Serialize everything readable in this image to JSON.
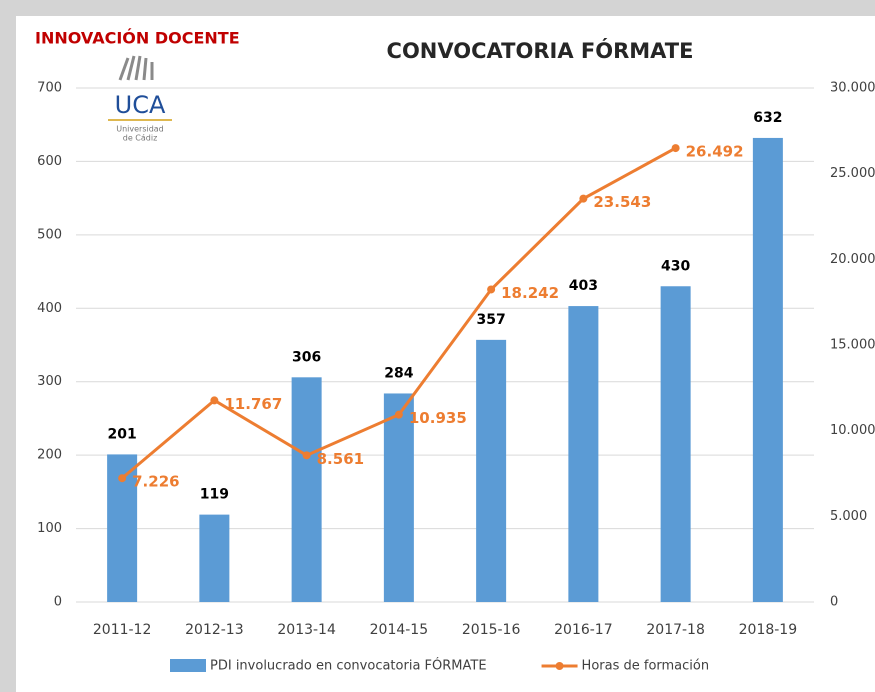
{
  "chart_data": {
    "type": "bar_line",
    "title": "CONVOCATORIA FÓRMATE",
    "brand": "INNOVACIÓN DOCENTE",
    "logo": {
      "text": "UCA",
      "lines": [
        "Universidad",
        "de Cádiz"
      ]
    },
    "categories": [
      "2011-12",
      "2012-13",
      "2013-14",
      "2014-15",
      "2015-16",
      "2016-17",
      "2017-18",
      "2018-19"
    ],
    "series": [
      {
        "name": "PDI involucrado en convocatoria FÓRMATE",
        "color": "#5b9bd5",
        "type": "bar",
        "values": [
          201,
          119,
          306,
          284,
          357,
          403,
          430,
          632
        ]
      },
      {
        "name": "Horas de formación",
        "color": "#ed7d31",
        "type": "line",
        "axis": "y2",
        "values": [
          7226,
          11767,
          8561,
          10935,
          18242,
          23543,
          26492,
          null
        ],
        "value_labels": [
          "7.226",
          "11.767",
          "8.561",
          "10.935",
          "18.242",
          "23.543",
          "26.492",
          null
        ]
      }
    ],
    "ylim": [
      0,
      700
    ],
    "yticks": [
      0,
      100,
      200,
      300,
      400,
      500,
      600,
      700
    ],
    "y2lim": [
      0,
      30000
    ],
    "y2ticks": [
      0,
      {
        "value": 5000,
        "label": "5.000"
      },
      {
        "value": 10000,
        "label": "10.000"
      },
      {
        "value": 15000,
        "label": "15.000"
      },
      {
        "value": 20000,
        "label": "20.000"
      },
      {
        "value": 25000,
        "label": "25.000"
      },
      {
        "value": 30000,
        "label": "30.000"
      }
    ],
    "grid": true,
    "legend": "bottom"
  }
}
